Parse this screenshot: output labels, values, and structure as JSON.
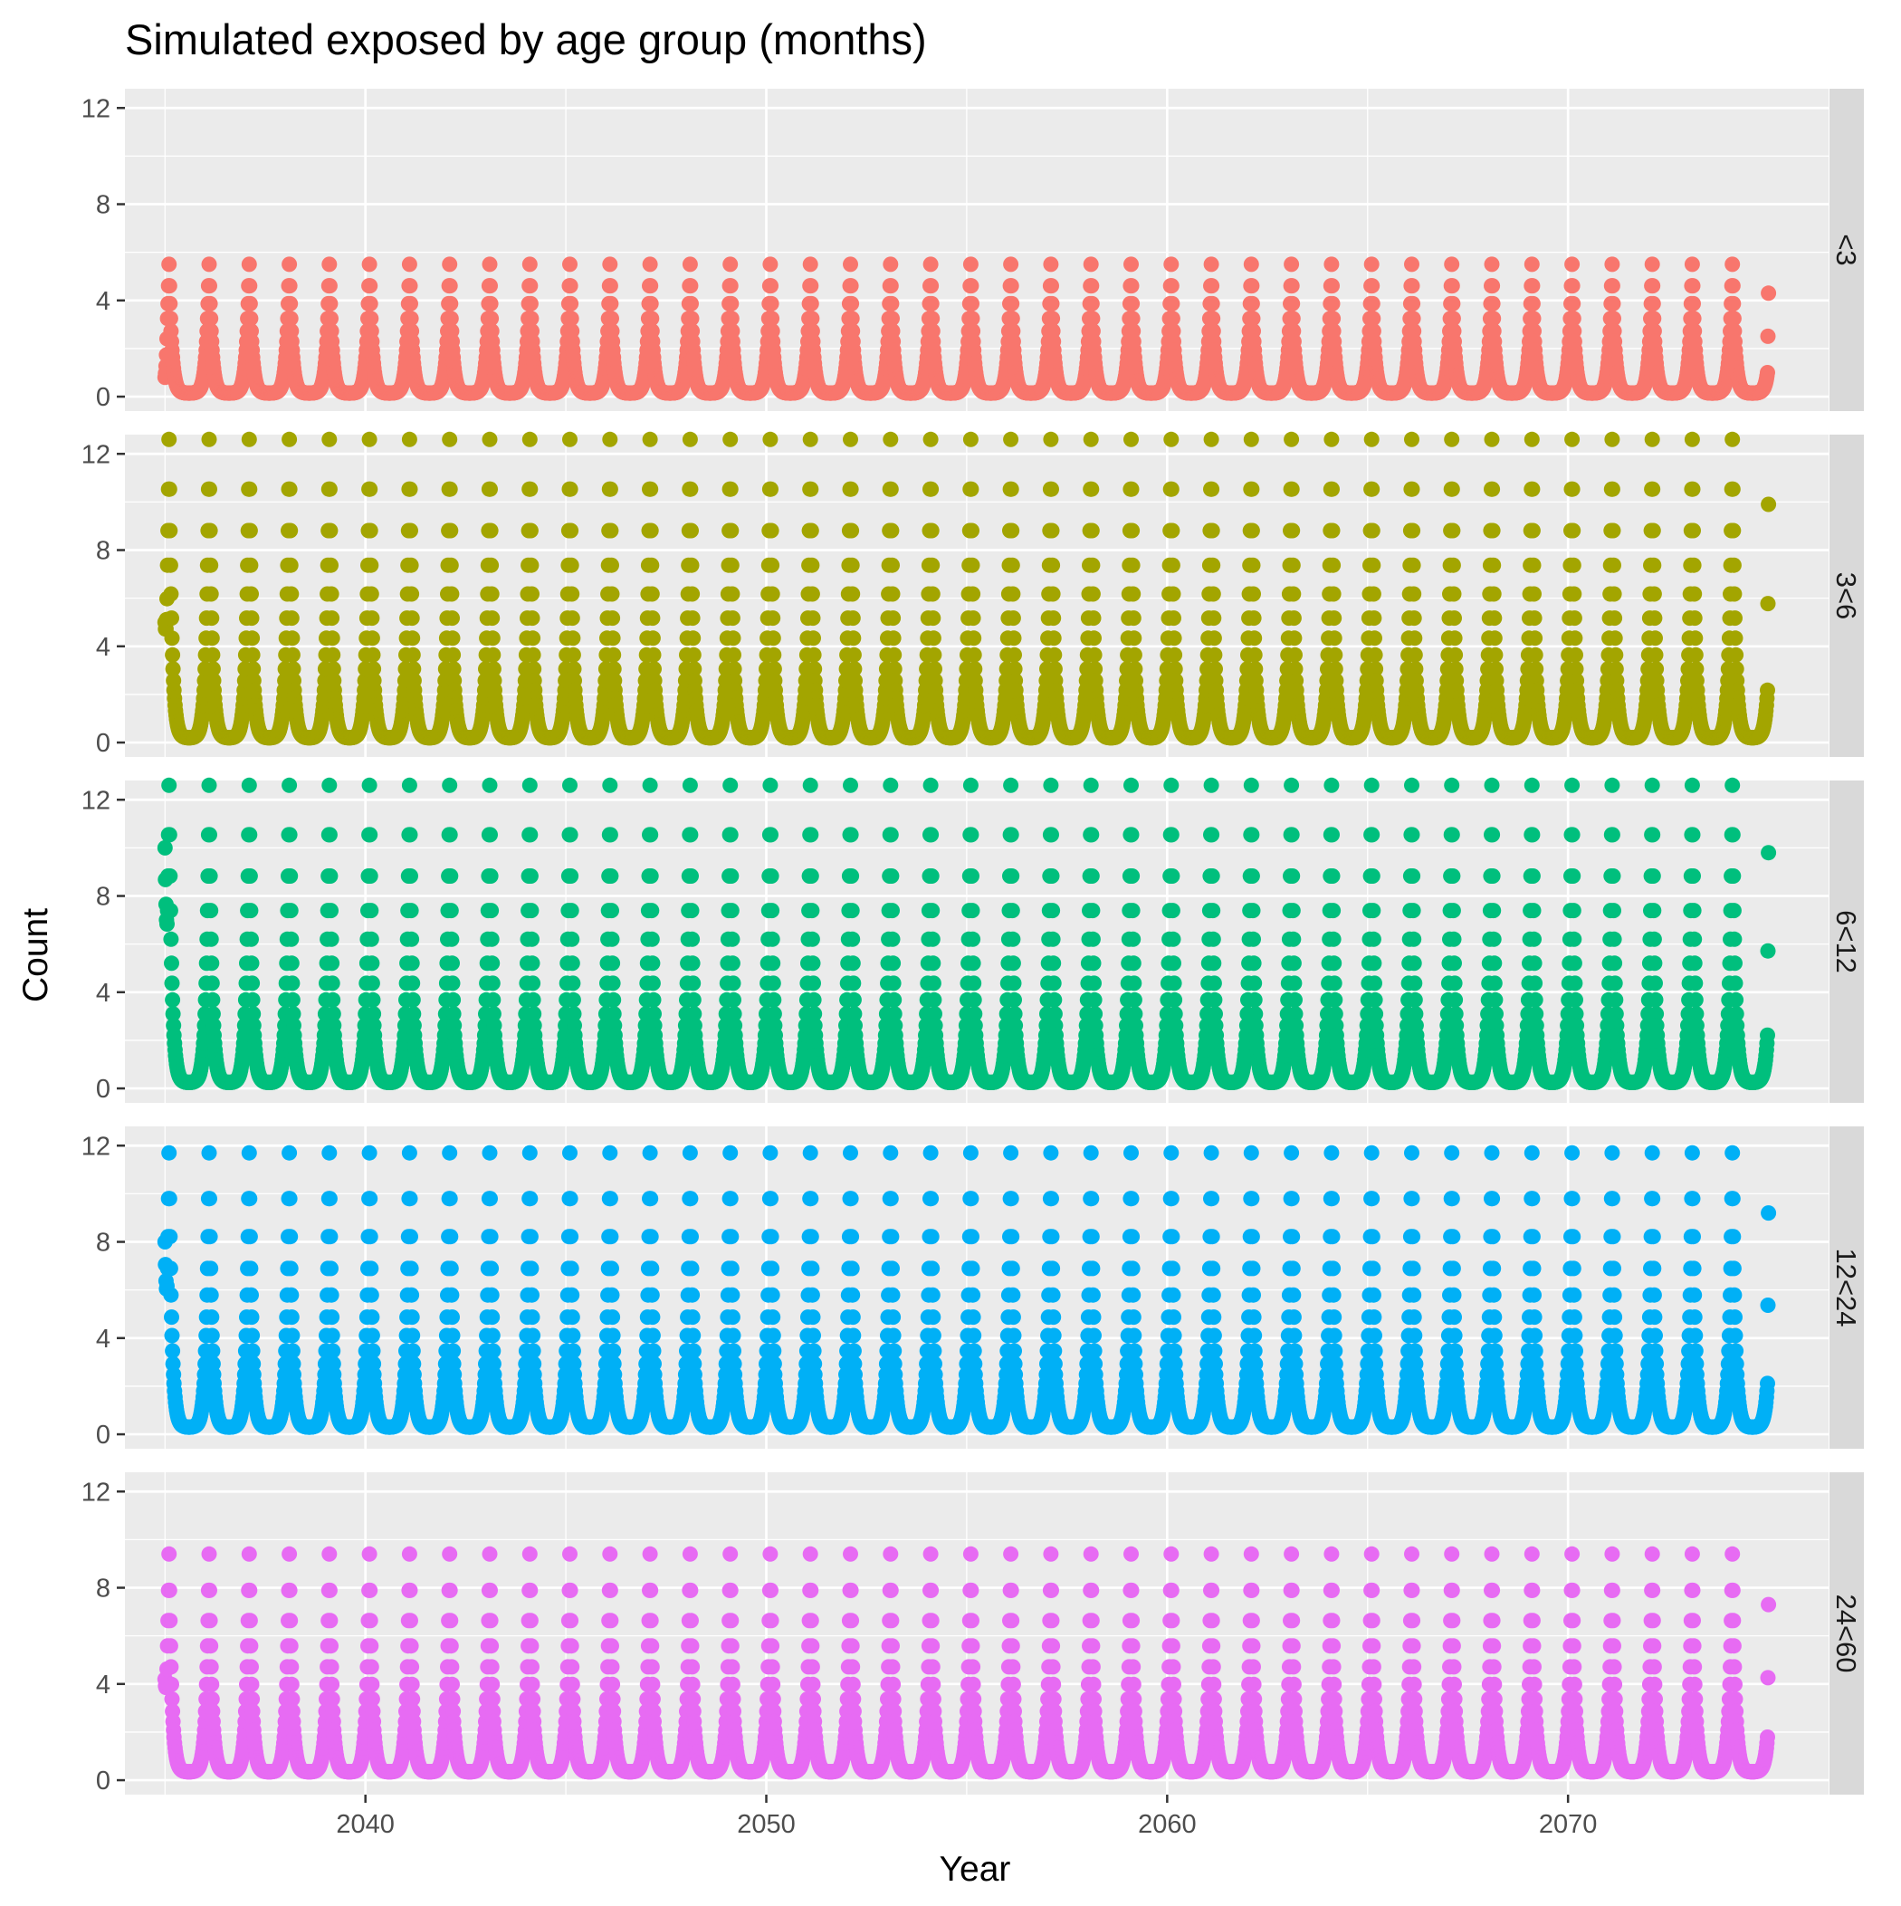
{
  "chart_data": {
    "type": "scatter",
    "title": "Simulated exposed by age group (months)",
    "xlabel": "Year",
    "ylabel": "Count",
    "xlim": [
      2034.0,
      2076.5
    ],
    "ylim": [
      -0.6,
      12.8
    ],
    "x_ticks": [
      2040,
      2050,
      2060,
      2070
    ],
    "y_ticks": [
      0,
      4,
      8,
      12
    ],
    "grid": true,
    "facet_layout": "rows",
    "x_range": [
      2035.0,
      2075.0
    ],
    "cycle_peak_years": [
      2035.1,
      2036.1,
      2037.1,
      2038.1,
      2039.1,
      2040.1,
      2041.1,
      2042.1,
      2043.1,
      2044.1,
      2045.1,
      2046.1,
      2047.1,
      2048.1,
      2049.1,
      2050.1,
      2051.1,
      2052.1,
      2053.1,
      2054.1,
      2055.1,
      2056.1,
      2057.1,
      2058.1,
      2059.1,
      2060.1,
      2061.1,
      2062.1,
      2063.1,
      2064.1,
      2065.1,
      2066.1,
      2067.1,
      2068.1,
      2069.1,
      2070.1,
      2071.1,
      2072.1,
      2073.1,
      2074.1
    ],
    "panels": [
      {
        "label": "<3",
        "color": "#F8766D",
        "peak": 5.5,
        "trough": 0.15,
        "start_value": 0.8,
        "end_value": 4.3
      },
      {
        "label": "3<6",
        "color": "#A3A500",
        "peak": 12.6,
        "trough": 0.2,
        "start_value": 5.0,
        "end_value": 9.9
      },
      {
        "label": "6<12",
        "color": "#00BF7D",
        "peak": 12.6,
        "trough": 0.25,
        "start_value": 10.0,
        "end_value": 9.8
      },
      {
        "label": "12<24",
        "color": "#00B0F6",
        "peak": 11.7,
        "trough": 0.3,
        "start_value": 8.0,
        "end_value": 9.2
      },
      {
        "label": "24<60",
        "color": "#E76BF3",
        "peak": 9.4,
        "trough": 0.35,
        "start_value": 4.2,
        "end_value": 7.3
      }
    ]
  }
}
